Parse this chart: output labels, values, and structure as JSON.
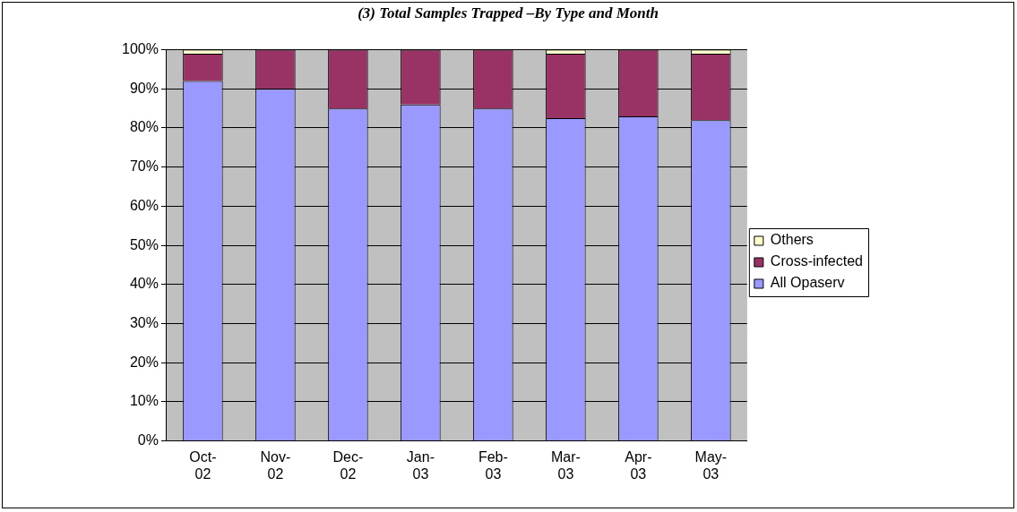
{
  "chart_data": {
    "type": "bar",
    "title": "(3) Total Samples Trapped –By Type and Month",
    "stacked": true,
    "categories": [
      "Oct-02",
      "Nov-02",
      "Dec-02",
      "Jan-03",
      "Feb-03",
      "Mar-03",
      "Apr-03",
      "May-03"
    ],
    "series": [
      {
        "name": "All Opaserv",
        "color": "#9999ff",
        "values": [
          92,
          90,
          85,
          86,
          85,
          82.5,
          83,
          82
        ]
      },
      {
        "name": "Cross-infected",
        "color": "#993366",
        "values": [
          7,
          10,
          15,
          14,
          15,
          16.5,
          17,
          17
        ]
      },
      {
        "name": "Others",
        "color": "#ffffcc",
        "values": [
          1,
          0,
          0,
          0,
          0,
          1,
          0,
          1
        ]
      }
    ],
    "ylim": [
      0,
      100
    ],
    "yticks": [
      {
        "value": 0,
        "label": "0%"
      },
      {
        "value": 10,
        "label": "10%"
      },
      {
        "value": 20,
        "label": "20%"
      },
      {
        "value": 30,
        "label": "30%"
      },
      {
        "value": 40,
        "label": "40%"
      },
      {
        "value": 50,
        "label": "50%"
      },
      {
        "value": 60,
        "label": "60%"
      },
      {
        "value": 70,
        "label": "70%"
      },
      {
        "value": 80,
        "label": "80%"
      },
      {
        "value": 90,
        "label": "90%"
      },
      {
        "value": 100,
        "label": "100%"
      }
    ],
    "grid": "y",
    "legend": "right"
  }
}
